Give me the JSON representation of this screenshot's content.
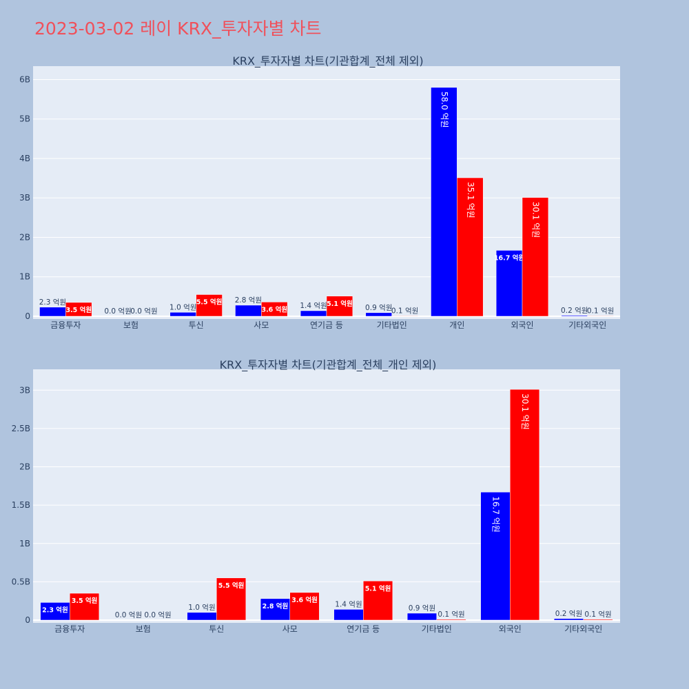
{
  "page": {
    "title": "2023-03-02 레이 KRX_투자자별 차트"
  },
  "colors": {
    "buy": "#0000ff",
    "sell": "#ff0000",
    "plot_bg": "#e5ecf6",
    "paper_bg": "#b0c4de",
    "title": "#f0505a",
    "text": "#2a3f5f"
  },
  "chart_data": [
    {
      "type": "bar",
      "title": "KRX_투자자별 차트(기관합계_전체 제외)",
      "categories": [
        "금융투자",
        "보험",
        "투신",
        "사모",
        "연기금 등",
        "기타법인",
        "개인",
        "외국인",
        "기타외국인"
      ],
      "series": [
        {
          "color": "#0000ff",
          "values": [
            230000000,
            0,
            100000000,
            280000000,
            140000000,
            90000000,
            5800000000,
            1670000000,
            20000000
          ],
          "labels": [
            "2.3 억원",
            "0.0 억원",
            "1.0 억원",
            "2.8 억원",
            "1.4 억원",
            "0.9 억원",
            "58.0 억원",
            "16.7 억원",
            "0.2 억원"
          ]
        },
        {
          "color": "#ff0000",
          "values": [
            350000000,
            0,
            550000000,
            360000000,
            510000000,
            10000000,
            3510000000,
            3010000000,
            10000000
          ],
          "labels": [
            "3.5 억원",
            "0.0 억원",
            "5.5 억원",
            "3.6 억원",
            "5.1 억원",
            "0.1 억원",
            "35.1 억원",
            "30.1 억원",
            "0.1 억원"
          ]
        }
      ],
      "ylim": [
        0,
        6200000000
      ],
      "yticks": [
        0,
        1000000000,
        2000000000,
        3000000000,
        4000000000,
        5000000000,
        6000000000
      ],
      "ytick_labels": [
        "0",
        "1B",
        "2B",
        "3B",
        "4B",
        "5B",
        "6B"
      ],
      "grid": true,
      "legend": "none"
    },
    {
      "type": "bar",
      "title": "KRX_투자자별 차트(기관합계_전체_개인 제외)",
      "categories": [
        "금융투자",
        "보험",
        "투신",
        "사모",
        "연기금 등",
        "기타법인",
        "외국인",
        "기타외국인"
      ],
      "series": [
        {
          "color": "#0000ff",
          "values": [
            230000000,
            0,
            100000000,
            280000000,
            140000000,
            90000000,
            1670000000,
            20000000
          ],
          "labels": [
            "2.3 억원",
            "0.0 억원",
            "1.0 억원",
            "2.8 억원",
            "1.4 억원",
            "0.9 억원",
            "16.7 억원",
            "0.2 억원"
          ]
        },
        {
          "color": "#ff0000",
          "values": [
            350000000,
            0,
            550000000,
            360000000,
            510000000,
            10000000,
            3010000000,
            10000000
          ],
          "labels": [
            "3.5 억원",
            "0.0 억원",
            "5.5 억원",
            "3.6 억원",
            "5.1 억원",
            "0.1 억원",
            "30.1 억원",
            "0.1 억원"
          ]
        }
      ],
      "ylim": [
        0,
        3200000000
      ],
      "yticks": [
        0,
        500000000,
        1000000000,
        1500000000,
        2000000000,
        2500000000,
        3000000000
      ],
      "ytick_labels": [
        "0",
        "0.5B",
        "1B",
        "1.5B",
        "2B",
        "2.5B",
        "3B"
      ],
      "grid": true,
      "legend": "none"
    }
  ]
}
